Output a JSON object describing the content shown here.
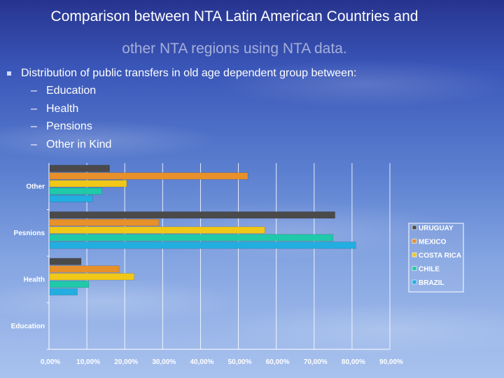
{
  "slide": {
    "title_line1": "Comparison between NTA Latin American Countries and",
    "title_line2": "other NTA regions using NTA data.",
    "bullet": "Distribution of public transfers in old age dependent group between:",
    "subitems": [
      {
        "dash": "–",
        "text": "Education"
      },
      {
        "dash": "–",
        "text": "Health"
      },
      {
        "dash": "–",
        "text": "Pensions"
      },
      {
        "dash": "–",
        "text": "Other in Kind"
      }
    ]
  },
  "chart_data": {
    "type": "bar",
    "orientation": "horizontal",
    "categories": [
      "Other",
      "Pesnions",
      "Health",
      "Education"
    ],
    "series": [
      {
        "name": "URUGUAY",
        "color": "#4a4a4a",
        "values": [
          16,
          75.5,
          8.5,
          0
        ]
      },
      {
        "name": "MEXICO",
        "color": "#e8902a",
        "values": [
          52.5,
          29,
          18.5,
          0
        ]
      },
      {
        "name": "COSTA RICA",
        "color": "#f2c818",
        "values": [
          20.5,
          57,
          22.5,
          0
        ]
      },
      {
        "name": "CHILE",
        "color": "#20c9a9",
        "values": [
          14,
          75,
          10.5,
          0
        ]
      },
      {
        "name": "BRAZIL",
        "color": "#22aee0",
        "values": [
          11.5,
          81,
          7.5,
          0
        ]
      }
    ],
    "xlim": [
      0,
      90
    ],
    "xticks": [
      "0,00%",
      "10,00%",
      "20,00%",
      "30,00%",
      "40,00%",
      "50,00%",
      "60,00%",
      "70,00%",
      "80,00%",
      "90,00%"
    ],
    "grid": true,
    "legend": "right"
  }
}
